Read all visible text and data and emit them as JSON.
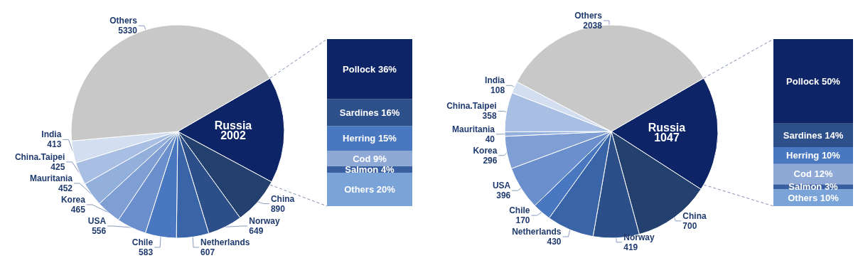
{
  "chart_data": [
    {
      "type": "pie",
      "categories": [
        "Russia",
        "China",
        "Norway",
        "Netherlands",
        "Chile",
        "USA",
        "Korea",
        "Mauritania",
        "China.Taipei",
        "India",
        "Others"
      ],
      "values": [
        2002,
        890,
        649,
        607,
        583,
        556,
        465,
        452,
        425,
        413,
        5330
      ],
      "colors": [
        "#0d2566",
        "#24406e",
        "#2c4f8a",
        "#3a64a8",
        "#4a78c0",
        "#6a8fcc",
        "#7f9fd4",
        "#93afdb",
        "#a8bfe3",
        "#d3def0",
        "#c8c8c8"
      ],
      "data_labels": true
    },
    {
      "type": "bar",
      "stacked": true,
      "categories": [
        null
      ],
      "series": [
        {
          "name": "Others",
          "color": "#7aa3d8",
          "values": [
            20
          ],
          "value_labels": [
            "20%"
          ]
        },
        {
          "name": "Salmon",
          "color": "#3a5fa0",
          "values": [
            4
          ],
          "value_labels": [
            "4%"
          ]
        },
        {
          "name": "Cod",
          "color": "#8ea9d6",
          "values": [
            9
          ],
          "value_labels": [
            "9%"
          ]
        },
        {
          "name": "Herring",
          "color": "#4a78c0",
          "values": [
            15
          ],
          "value_labels": [
            "15%"
          ]
        },
        {
          "name": "Sardines",
          "color": "#2d4f8a",
          "values": [
            16
          ],
          "value_labels": [
            "16%"
          ]
        },
        {
          "name": "Pollock",
          "color": "#0d2566",
          "values": [
            36
          ],
          "value_labels": [
            "36%"
          ]
        }
      ]
    },
    {
      "type": "pie",
      "categories": [
        "Russia",
        "China",
        "Norway",
        "Netherlands",
        "Chile",
        "USA",
        "Korea",
        "Mauritania",
        "China.Taipei",
        "India",
        "Others"
      ],
      "values": [
        1047,
        700,
        419,
        430,
        170,
        396,
        296,
        40,
        358,
        108,
        2038
      ],
      "colors": [
        "#0d2566",
        "#24406e",
        "#2c4f8a",
        "#3a64a8",
        "#4a78c0",
        "#6a8fcc",
        "#7f9fd4",
        "#93afdb",
        "#a8bfe3",
        "#d3def0",
        "#c8c8c8"
      ],
      "data_labels": true
    },
    {
      "type": "bar",
      "stacked": true,
      "categories": [
        null
      ],
      "series": [
        {
          "name": "Others",
          "color": "#7aa3d8",
          "values": [
            10
          ],
          "value_labels": [
            "10%"
          ]
        },
        {
          "name": "Salmon",
          "color": "#3a5fa0",
          "values": [
            3
          ],
          "value_labels": [
            "3%"
          ]
        },
        {
          "name": "Cod",
          "color": "#8ea9d6",
          "values": [
            12
          ],
          "value_labels": [
            "12%"
          ]
        },
        {
          "name": "Herring",
          "color": "#4a78c0",
          "values": [
            10
          ],
          "value_labels": [
            "10%"
          ]
        },
        {
          "name": "Sardines",
          "color": "#2d4f8a",
          "values": [
            14
          ],
          "value_labels": [
            "14%"
          ]
        },
        {
          "name": "Pollock",
          "color": "#0d2566",
          "values": [
            50
          ],
          "value_labels": [
            "50%"
          ]
        }
      ]
    }
  ]
}
